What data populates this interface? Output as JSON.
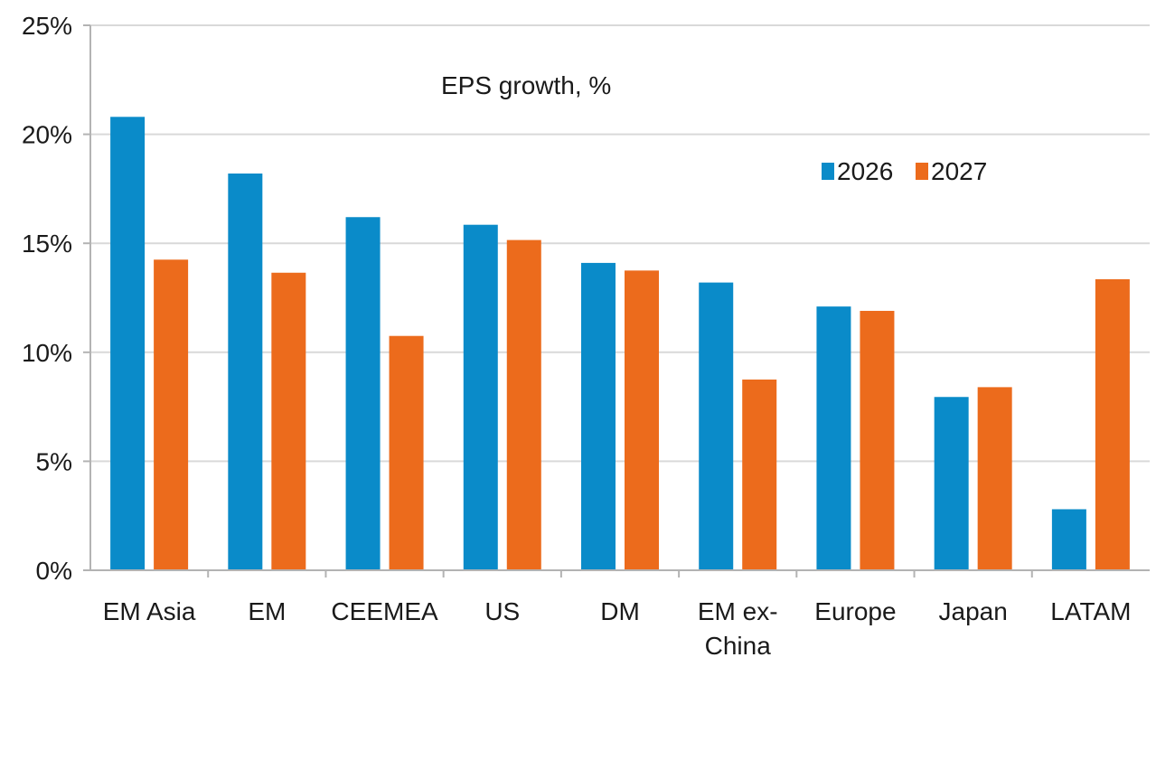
{
  "chart_data": {
    "type": "bar",
    "title": "EPS growth, %",
    "categories": [
      "EM Asia",
      "EM",
      "CEEMEA",
      "US",
      "DM",
      "EM ex-China",
      "Europe",
      "Japan",
      "LATAM"
    ],
    "category_lines": [
      [
        "EM Asia"
      ],
      [
        "EM"
      ],
      [
        "CEEMEA"
      ],
      [
        "US"
      ],
      [
        "DM"
      ],
      [
        "EM ex-",
        "China"
      ],
      [
        "Europe"
      ],
      [
        "Japan"
      ],
      [
        "LATAM"
      ]
    ],
    "series": [
      {
        "name": "2026",
        "color": "#0a8bc9",
        "values": [
          20.8,
          18.2,
          16.2,
          15.85,
          14.1,
          13.2,
          12.1,
          7.95,
          2.8
        ]
      },
      {
        "name": "2027",
        "color": "#ec6b1c",
        "values": [
          14.25,
          13.65,
          10.75,
          15.15,
          13.75,
          8.75,
          11.9,
          8.4,
          13.35
        ]
      }
    ],
    "yticks": [
      "0%",
      "5%",
      "10%",
      "15%",
      "20%",
      "25%"
    ],
    "ytick_values": [
      0,
      5,
      10,
      15,
      20,
      25
    ],
    "ylim": [
      0,
      25
    ],
    "grid": true,
    "legend_position": "top-right"
  }
}
